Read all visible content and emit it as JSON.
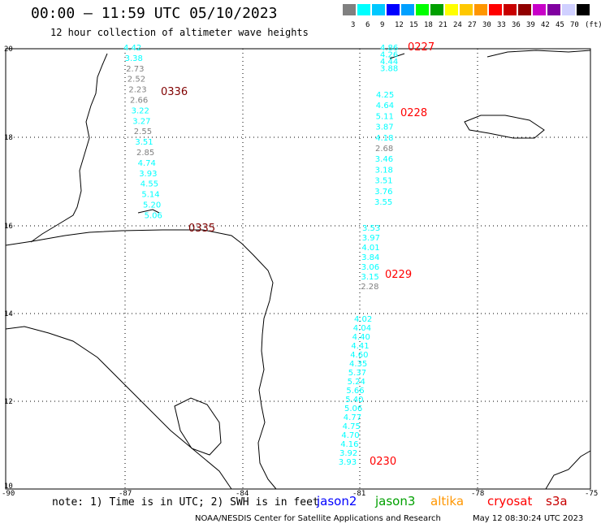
{
  "header": {
    "title": "00:00 – 11:59 UTC 05/10/2023",
    "subtitle": "12 hour collection of altimeter wave heights"
  },
  "colorbar": {
    "colors": [
      "#808080",
      "#00ffff",
      "#00c8ff",
      "#0000ff",
      "#00a0ff",
      "#00ff00",
      "#00a000",
      "#ffff00",
      "#ffc800",
      "#ff9600",
      "#ff0000",
      "#c80000",
      "#900000",
      "#c800c8",
      "#8000a0",
      "#d0d0ff",
      "#000000"
    ],
    "labels": [
      "3",
      "6",
      "9",
      "12",
      "15",
      "18",
      "21",
      "24",
      "27",
      "30",
      "33",
      "36",
      "39",
      "42",
      "45",
      "70",
      "(ft)"
    ]
  },
  "axes": {
    "lat_labels": [
      "20",
      "18",
      "16",
      "14",
      "12",
      "10"
    ],
    "lon_labels": [
      "-90",
      "-87",
      "-84",
      "-81",
      "-78",
      "-75"
    ]
  },
  "tracks": [
    {
      "time": "0336",
      "time_color": "#800000",
      "values": [
        {
          "v": "4.42",
          "c": "#00ffff"
        },
        {
          "v": "3.38",
          "c": "#00ffff"
        },
        {
          "v": "2.73",
          "c": "#808080"
        },
        {
          "v": "2.52",
          "c": "#808080"
        },
        {
          "v": "2.23",
          "c": "#808080"
        },
        {
          "v": "2.66",
          "c": "#808080"
        },
        {
          "v": "3.22",
          "c": "#00ffff"
        },
        {
          "v": "3.27",
          "c": "#00ffff"
        },
        {
          "v": "2.55",
          "c": "#808080"
        },
        {
          "v": "3.51",
          "c": "#00ffff"
        },
        {
          "v": "2.85",
          "c": "#808080"
        },
        {
          "v": "4.74",
          "c": "#00ffff"
        },
        {
          "v": "3.93",
          "c": "#00ffff"
        },
        {
          "v": "4.55",
          "c": "#00ffff"
        },
        {
          "v": "5.14",
          "c": "#00ffff"
        },
        {
          "v": "5.20",
          "c": "#00ffff"
        },
        {
          "v": "5.06",
          "c": "#00ffff"
        }
      ]
    },
    {
      "time": "0335",
      "time_color": "#800000",
      "values": []
    },
    {
      "time": "0227",
      "time_color": "#ff0000",
      "values": [
        {
          "v": "4.86",
          "c": "#00ffff"
        },
        {
          "v": "4.26",
          "c": "#00ffff"
        },
        {
          "v": "4.44",
          "c": "#00ffff"
        },
        {
          "v": "3.88",
          "c": "#00ffff"
        }
      ]
    },
    {
      "time": "0228",
      "time_color": "#ff0000",
      "values": [
        {
          "v": "4.25",
          "c": "#00ffff"
        },
        {
          "v": "4.64",
          "c": "#00ffff"
        },
        {
          "v": "5.11",
          "c": "#00ffff"
        },
        {
          "v": "3.87",
          "c": "#00ffff"
        },
        {
          "v": "4.18",
          "c": "#00ffff"
        },
        {
          "v": "2.68",
          "c": "#808080"
        },
        {
          "v": "3.46",
          "c": "#00ffff"
        },
        {
          "v": "3.18",
          "c": "#00ffff"
        },
        {
          "v": "3.51",
          "c": "#00ffff"
        },
        {
          "v": "3.76",
          "c": "#00ffff"
        },
        {
          "v": "3.55",
          "c": "#00ffff"
        }
      ]
    },
    {
      "time": "0229",
      "time_color": "#ff0000",
      "values": [
        {
          "v": "3.53",
          "c": "#00ffff"
        },
        {
          "v": "3.97",
          "c": "#00ffff"
        },
        {
          "v": "4.01",
          "c": "#00ffff"
        },
        {
          "v": "3.84",
          "c": "#00ffff"
        },
        {
          "v": "3.06",
          "c": "#00ffff"
        },
        {
          "v": "3.15",
          "c": "#00ffff"
        },
        {
          "v": "2.28",
          "c": "#808080"
        }
      ]
    },
    {
      "time": "0230",
      "time_color": "#ff0000",
      "values": [
        {
          "v": "4.02",
          "c": "#00ffff"
        },
        {
          "v": "4.04",
          "c": "#00ffff"
        },
        {
          "v": "4.40",
          "c": "#00ffff"
        },
        {
          "v": "4.41",
          "c": "#00ffff"
        },
        {
          "v": "4.60",
          "c": "#00ffff"
        },
        {
          "v": "4.35",
          "c": "#00ffff"
        },
        {
          "v": "5.37",
          "c": "#00ffff"
        },
        {
          "v": "5.24",
          "c": "#00ffff"
        },
        {
          "v": "5.66",
          "c": "#00ffff"
        },
        {
          "v": "5.40",
          "c": "#00ffff"
        },
        {
          "v": "5.06",
          "c": "#00ffff"
        },
        {
          "v": "4.77",
          "c": "#00ffff"
        },
        {
          "v": "4.75",
          "c": "#00ffff"
        },
        {
          "v": "4.70",
          "c": "#00ffff"
        },
        {
          "v": "4.16",
          "c": "#00ffff"
        },
        {
          "v": "3.92",
          "c": "#00ffff"
        },
        {
          "v": "3.93",
          "c": "#00ffff"
        }
      ]
    }
  ],
  "footer": {
    "note": "note: 1) Time is in UTC; 2) SWH is in feet",
    "satellites": [
      {
        "name": "jason2",
        "color": "#0000ff"
      },
      {
        "name": "jason3",
        "color": "#00a000"
      },
      {
        "name": "altika",
        "color": "#ff9600"
      },
      {
        "name": "cryosat",
        "color": "#ff0000"
      },
      {
        "name": "s3a",
        "color": "#c80000"
      }
    ],
    "credit": "NOAA/NESDIS Center for Satellite Applications and Research",
    "timestamp": "May 12 08:30:24 UTC 2023"
  }
}
